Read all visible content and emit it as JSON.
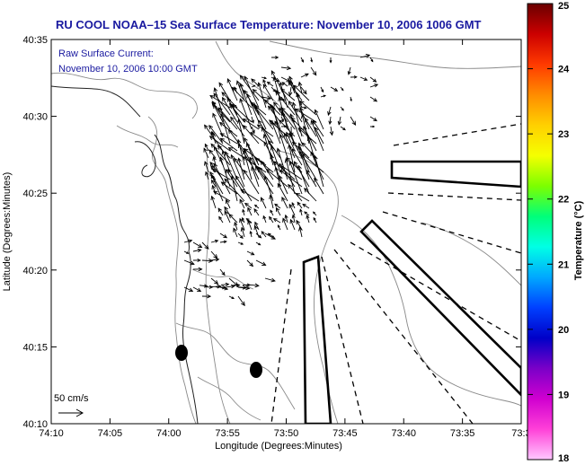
{
  "title": "RU COOL  NOAA–15  Sea Surface Temperature:  November 10, 2006 1006 GMT",
  "legend": {
    "line1": "Raw Surface Current:",
    "line2": "November 10, 2006 10:00 GMT"
  },
  "scale_label": "50 cm/s",
  "x_axis": {
    "label": "Longitude (Degrees:Minutes)",
    "ticks": [
      "74:10",
      "74:05",
      "74:00",
      "73:55",
      "73:50",
      "73:45",
      "73:40",
      "73:35",
      "73:3"
    ]
  },
  "y_axis": {
    "label": "Latitude (Degrees:Minutes)",
    "ticks": [
      "40:35",
      "40:30",
      "40:25",
      "40:20",
      "40:15",
      "40:10"
    ]
  },
  "colorbar": {
    "label": "Temperature (°C)",
    "ticks": [
      "25",
      "24",
      "23",
      "22",
      "21",
      "20",
      "19",
      "18"
    ],
    "colors": [
      "#6a0000",
      "#cc0000",
      "#ff3a00",
      "#ff8c00",
      "#ffd000",
      "#f5ff00",
      "#7cff00",
      "#00ff7a",
      "#00ffe5",
      "#00a8ff",
      "#0040ff",
      "#0000c8",
      "#7a00c8",
      "#d000d0",
      "#ff40d8",
      "#ffc8ff"
    ]
  },
  "icons": {
    "current_arrows": "arrow-field",
    "scale_arrow": "arrow-right-icon"
  }
}
